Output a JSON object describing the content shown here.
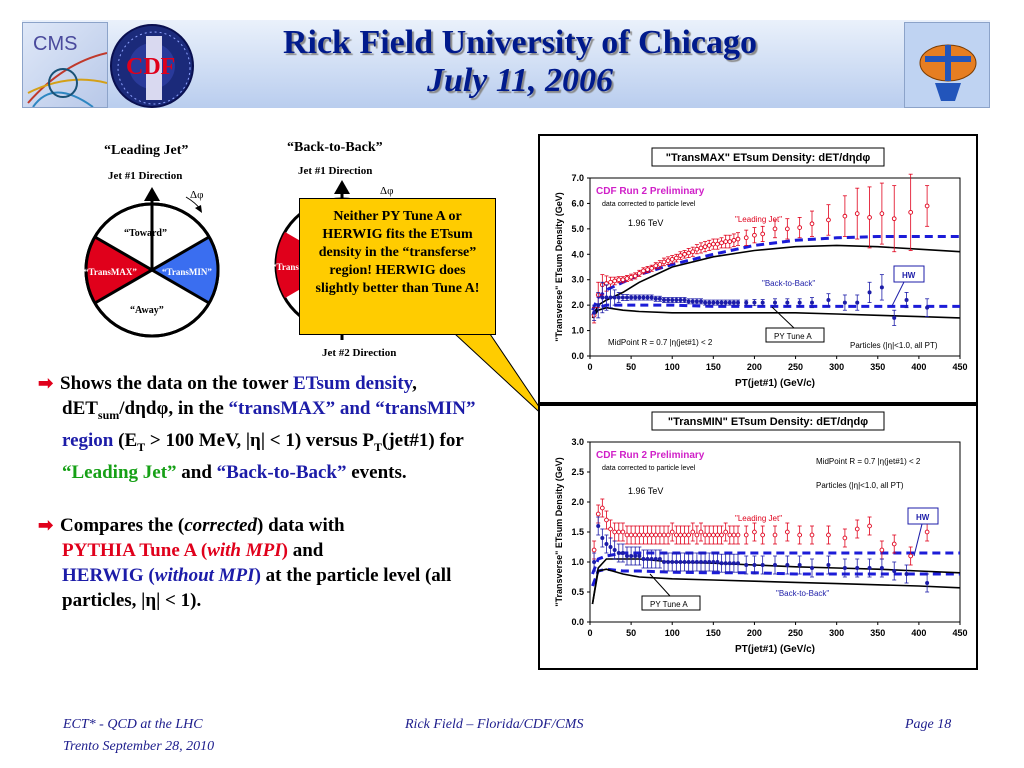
{
  "header": {
    "title": "Rick Field University of Chicago",
    "subtitle": "July 11, 2006",
    "logos": [
      "CMS",
      "CDF"
    ]
  },
  "diagram1": {
    "title": "“Leading Jet”",
    "jet1": "Jet #1 Direction",
    "dphi": "Δφ",
    "toward": "“Toward”",
    "transmax": "“TransMAX”",
    "transmin": "“TransMIN”",
    "away": "“Away”"
  },
  "diagram2": {
    "title": "“Back-to-Back”",
    "jet1": "Jet #1 Direction",
    "dphi": "Δφ",
    "trans": "“Trans",
    "jet2": "Jet #2 Direction"
  },
  "callout": {
    "text": "Neither PY Tune A or HERWIG fits the ETsum density in the “transferse” region! HERWIG does slightly better than Tune A!"
  },
  "bullets": {
    "b1": {
      "p1": "Shows the data on the tower ",
      "p2": "ETsum density",
      "p3": ", dET",
      "p4": "sum",
      "p5": "/dηdφ, in the ",
      "p6": "“transMAX” and “transMIN” region",
      "p7": " (E",
      "p8": "T",
      "p9": " > 100 MeV, |η| < 1) versus P",
      "p10": "T",
      "p11": "(jet#1) for ",
      "p12": "“Leading Jet”",
      "p13": " and ",
      "p14": "“Back-to-Back”",
      "p15": " events."
    },
    "b2": {
      "p1": "Compares the (",
      "p2": "corrected",
      "p3": ") data with ",
      "p4": "PYTHIA Tune A (",
      "p5": "with MPI",
      "p6": ")",
      "p7": " and ",
      "p8": "HERWIG (",
      "p9": "without MPI",
      "p10": ")",
      "p11": " at the particle level (all particles, |η| < 1)."
    }
  },
  "footer": {
    "left1": "ECT* - QCD at the LHC",
    "left2": "Trento  September 28, 2010",
    "center": "Rick Field – Florida/CDF/CMS",
    "right": "Page 18"
  },
  "colors": {
    "title": "#001a8c",
    "data_red": "#e0001b",
    "data_blue": "#1c1ca8",
    "callout": "#ffcc00"
  },
  "chart_data": [
    {
      "type": "line",
      "title": "\"TransMAX\" ETsum Density: dET/dηdφ",
      "xlabel": "PT(jet#1)  (GeV/c)",
      "ylabel": "\"Transverse\" ETsum Density (GeV)",
      "xlim": [
        0,
        450
      ],
      "ylim": [
        0,
        7
      ],
      "xticks": [
        0,
        50,
        100,
        150,
        200,
        250,
        300,
        350,
        400,
        450
      ],
      "yticks": [
        "0.0",
        "1.0",
        "2.0",
        "3.0",
        "4.0",
        "5.0",
        "6.0",
        "7.0"
      ],
      "annotations": {
        "cdf": "CDF Run 2 Preliminary",
        "corr": "data corrected to particle level",
        "tev": "1.96 TeV",
        "lead": "\"Leading Jet\"",
        "b2b": "\"Back-to-Back\"",
        "hw": "HW",
        "pyta": "PY Tune A",
        "mid": "MidPoint R = 0.7 |η(jet#1) < 2",
        "part": "Particles (|η|<1.0, all PT)"
      },
      "series": [
        {
          "name": "\"Leading Jet\"",
          "style": "data-red",
          "x": [
            5,
            10,
            15,
            20,
            25,
            30,
            35,
            40,
            45,
            50,
            55,
            60,
            65,
            70,
            75,
            80,
            85,
            90,
            95,
            100,
            105,
            110,
            115,
            120,
            125,
            130,
            135,
            140,
            145,
            150,
            155,
            160,
            165,
            170,
            175,
            180,
            190,
            200,
            210,
            225,
            240,
            255,
            270,
            290,
            310,
            325,
            340,
            355,
            370,
            390,
            410
          ],
          "y": [
            1.6,
            2.4,
            2.8,
            2.85,
            2.9,
            2.95,
            3.0,
            3.0,
            3.05,
            3.1,
            3.15,
            3.25,
            3.35,
            3.4,
            3.45,
            3.55,
            3.6,
            3.7,
            3.75,
            3.8,
            3.85,
            3.95,
            4.0,
            4.05,
            4.1,
            4.2,
            4.25,
            4.3,
            4.35,
            4.4,
            4.4,
            4.45,
            4.5,
            4.5,
            4.55,
            4.6,
            4.65,
            4.75,
            4.8,
            5.0,
            5.0,
            5.05,
            5.2,
            5.35,
            5.5,
            5.6,
            5.45,
            5.6,
            5.4,
            5.65,
            5.9
          ],
          "err": [
            0.3,
            0.5,
            0.4,
            0.3,
            0.2,
            0.15,
            0.12,
            0.12,
            0.12,
            0.12,
            0.12,
            0.12,
            0.12,
            0.12,
            0.12,
            0.12,
            0.15,
            0.15,
            0.15,
            0.15,
            0.15,
            0.15,
            0.15,
            0.18,
            0.18,
            0.18,
            0.2,
            0.2,
            0.2,
            0.2,
            0.2,
            0.2,
            0.25,
            0.25,
            0.25,
            0.25,
            0.3,
            0.3,
            0.3,
            0.35,
            0.4,
            0.4,
            0.5,
            0.6,
            0.8,
            1.0,
            1.2,
            1.2,
            1.3,
            1.5,
            0.8
          ]
        },
        {
          "name": "\"Back-to-Back\"",
          "style": "data-blue",
          "x": [
            5,
            10,
            15,
            20,
            25,
            30,
            35,
            40,
            45,
            50,
            55,
            60,
            65,
            70,
            75,
            80,
            85,
            90,
            95,
            100,
            105,
            110,
            115,
            120,
            125,
            130,
            135,
            140,
            145,
            150,
            155,
            160,
            165,
            170,
            175,
            180,
            190,
            200,
            210,
            225,
            240,
            255,
            270,
            290,
            310,
            325,
            340,
            355,
            370,
            385,
            410
          ],
          "y": [
            1.7,
            2.0,
            2.3,
            2.3,
            2.3,
            2.3,
            2.3,
            2.3,
            2.3,
            2.3,
            2.3,
            2.3,
            2.3,
            2.3,
            2.3,
            2.25,
            2.25,
            2.2,
            2.2,
            2.2,
            2.2,
            2.2,
            2.2,
            2.15,
            2.15,
            2.15,
            2.15,
            2.1,
            2.1,
            2.1,
            2.1,
            2.1,
            2.1,
            2.1,
            2.1,
            2.1,
            2.1,
            2.1,
            2.1,
            2.1,
            2.1,
            2.1,
            2.1,
            2.2,
            2.1,
            2.1,
            2.5,
            2.7,
            1.5,
            2.2,
            1.9
          ],
          "err": [
            0.3,
            0.5,
            0.6,
            0.5,
            0.4,
            0.3,
            0.2,
            0.12,
            0.12,
            0.1,
            0.1,
            0.1,
            0.1,
            0.1,
            0.1,
            0.1,
            0.1,
            0.1,
            0.1,
            0.1,
            0.1,
            0.1,
            0.1,
            0.1,
            0.1,
            0.1,
            0.1,
            0.1,
            0.1,
            0.1,
            0.1,
            0.1,
            0.1,
            0.1,
            0.1,
            0.1,
            0.1,
            0.12,
            0.12,
            0.15,
            0.15,
            0.15,
            0.2,
            0.25,
            0.3,
            0.3,
            0.4,
            0.5,
            0.3,
            0.3,
            0.35
          ]
        },
        {
          "name": "HW Leading",
          "style": "dash-blue",
          "x": [
            3,
            10,
            20,
            40,
            60,
            100,
            150,
            200,
            250,
            300,
            350,
            400,
            450
          ],
          "y": [
            1.8,
            2.3,
            2.6,
            2.9,
            3.2,
            3.6,
            4.0,
            4.35,
            4.55,
            4.65,
            4.7,
            4.7,
            4.7
          ]
        },
        {
          "name": "HW Back-to-Back",
          "style": "dash-blue",
          "x": [
            3,
            10,
            20,
            40,
            60,
            100,
            150,
            200,
            250,
            300,
            350,
            400,
            450
          ],
          "y": [
            1.6,
            1.9,
            2.0,
            2.0,
            2.0,
            2.0,
            1.95,
            1.95,
            1.95,
            1.95,
            1.95,
            1.95,
            1.95
          ]
        },
        {
          "name": "PY Tune A Leading",
          "style": "solid-black",
          "x": [
            3,
            10,
            20,
            40,
            60,
            80,
            100,
            150,
            200,
            250,
            300,
            350,
            400,
            450
          ],
          "y": [
            1.5,
            2.0,
            2.2,
            2.5,
            2.9,
            3.2,
            3.5,
            3.9,
            4.15,
            4.3,
            4.35,
            4.3,
            4.2,
            4.1
          ]
        },
        {
          "name": "PY Tune A Back-to-Back",
          "style": "solid-black",
          "x": [
            3,
            10,
            20,
            40,
            60,
            100,
            150,
            200,
            250,
            300,
            350,
            400,
            450
          ],
          "y": [
            1.5,
            1.8,
            1.9,
            1.8,
            1.75,
            1.7,
            1.7,
            1.7,
            1.7,
            1.65,
            1.6,
            1.55,
            1.5
          ]
        }
      ]
    },
    {
      "type": "line",
      "title": "\"TransMIN\" ETsum Density: dET/dηdφ",
      "xlabel": "PT(jet#1)  (GeV/c)",
      "ylabel": "\"Transverse\" ETsum Density (GeV)",
      "xlim": [
        0,
        450
      ],
      "ylim": [
        0,
        3
      ],
      "xticks": [
        0,
        50,
        100,
        150,
        200,
        250,
        300,
        350,
        400,
        450
      ],
      "yticks": [
        "0.0",
        "0.5",
        "1.0",
        "1.5",
        "2.0",
        "2.5",
        "3.0"
      ],
      "annotations": {
        "cdf": "CDF Run 2 Preliminary",
        "corr": "data corrected to particle level",
        "tev": "1.96 TeV",
        "lead": "\"Leading Jet\"",
        "b2b": "\"Back-to-Back\"",
        "hw": "HW",
        "pyta": "PY Tune A",
        "mid": "MidPoint R = 0.7 |η(jet#1) < 2",
        "part": "Particles (|η|<1.0, all PT)"
      },
      "series": [
        {
          "name": "\"Leading Jet\"",
          "style": "data-red",
          "x": [
            5,
            10,
            15,
            20,
            25,
            30,
            35,
            40,
            45,
            50,
            55,
            60,
            65,
            70,
            75,
            80,
            85,
            90,
            95,
            100,
            105,
            110,
            115,
            120,
            125,
            130,
            135,
            140,
            145,
            150,
            155,
            160,
            165,
            170,
            175,
            180,
            190,
            200,
            210,
            225,
            240,
            255,
            270,
            290,
            310,
            325,
            340,
            355,
            370,
            390,
            410
          ],
          "y": [
            1.2,
            1.8,
            1.9,
            1.7,
            1.55,
            1.5,
            1.5,
            1.5,
            1.45,
            1.45,
            1.45,
            1.45,
            1.45,
            1.45,
            1.45,
            1.45,
            1.45,
            1.45,
            1.45,
            1.5,
            1.45,
            1.45,
            1.45,
            1.45,
            1.5,
            1.45,
            1.5,
            1.45,
            1.45,
            1.45,
            1.45,
            1.45,
            1.5,
            1.45,
            1.45,
            1.45,
            1.45,
            1.5,
            1.45,
            1.45,
            1.5,
            1.45,
            1.45,
            1.45,
            1.4,
            1.55,
            1.6,
            1.2,
            1.3,
            1.1,
            1.5
          ]
        },
        {
          "name": "\"Back-to-Back\"",
          "style": "data-blue",
          "x": [
            5,
            10,
            15,
            20,
            25,
            30,
            35,
            40,
            45,
            50,
            55,
            60,
            65,
            70,
            75,
            80,
            85,
            90,
            95,
            100,
            105,
            110,
            115,
            120,
            125,
            130,
            135,
            140,
            145,
            150,
            155,
            160,
            165,
            170,
            175,
            180,
            190,
            200,
            210,
            225,
            240,
            255,
            270,
            290,
            310,
            325,
            340,
            355,
            370,
            385,
            410
          ],
          "y": [
            1.0,
            1.6,
            1.4,
            1.3,
            1.25,
            1.2,
            1.15,
            1.15,
            1.1,
            1.1,
            1.1,
            1.1,
            1.05,
            1.05,
            1.05,
            1.05,
            1.05,
            1.0,
            1.0,
            1.0,
            1.0,
            1.0,
            1.0,
            1.0,
            1.0,
            1.0,
            1.0,
            1.0,
            1.0,
            1.0,
            1.0,
            0.98,
            0.98,
            0.98,
            0.98,
            0.98,
            0.95,
            0.95,
            0.95,
            0.95,
            0.95,
            0.95,
            0.9,
            0.95,
            0.9,
            0.9,
            0.9,
            0.9,
            0.85,
            0.8,
            0.65
          ]
        },
        {
          "name": "HW Leading",
          "style": "dash-blue",
          "x": [
            3,
            10,
            20,
            40,
            60,
            100,
            150,
            200,
            250,
            300,
            350,
            400,
            450
          ],
          "y": [
            0.8,
            1.05,
            1.1,
            1.15,
            1.15,
            1.15,
            1.15,
            1.15,
            1.15,
            1.15,
            1.15,
            1.15,
            1.15
          ]
        },
        {
          "name": "HW Back-to-Back",
          "style": "dash-blue",
          "x": [
            3,
            10,
            20,
            40,
            60,
            100,
            150,
            200,
            250,
            300,
            350,
            400,
            450
          ],
          "y": [
            0.6,
            0.85,
            0.88,
            0.85,
            0.85,
            0.83,
            0.82,
            0.82,
            0.8,
            0.8,
            0.8,
            0.8,
            0.8
          ]
        },
        {
          "name": "PY Tune A Leading",
          "style": "solid-black",
          "x": [
            3,
            10,
            20,
            40,
            60,
            100,
            150,
            200,
            250,
            300,
            350,
            400,
            450
          ],
          "y": [
            0.3,
            0.9,
            1.05,
            1.05,
            1.05,
            1.0,
            0.98,
            0.95,
            0.92,
            0.9,
            0.88,
            0.85,
            0.82
          ]
        },
        {
          "name": "PY Tune A Back-to-Back",
          "style": "solid-black",
          "x": [
            3,
            10,
            20,
            40,
            60,
            100,
            150,
            200,
            250,
            300,
            350,
            400,
            450
          ],
          "y": [
            0.3,
            0.85,
            0.88,
            0.8,
            0.75,
            0.72,
            0.7,
            0.68,
            0.66,
            0.64,
            0.62,
            0.6,
            0.57
          ]
        }
      ]
    }
  ]
}
